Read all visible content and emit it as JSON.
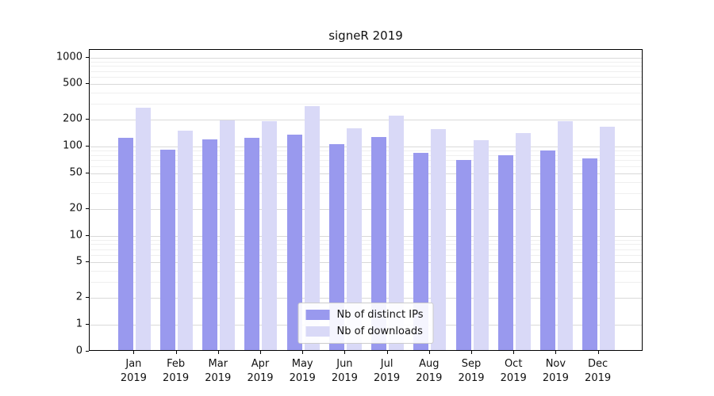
{
  "chart_data": {
    "type": "bar",
    "title": "signeR 2019",
    "categories": [
      "Jan 2019",
      "Feb 2019",
      "Mar 2019",
      "Apr 2019",
      "May 2019",
      "Jun 2019",
      "Jul 2019",
      "Aug 2019",
      "Sep 2019",
      "Oct 2019",
      "Nov 2019",
      "Dec 2019"
    ],
    "series": [
      {
        "name": "Nb of distinct IPs",
        "color": "#9999ee",
        "values": [
          120,
          88,
          115,
          120,
          130,
          102,
          122,
          82,
          68,
          77,
          87,
          70
        ]
      },
      {
        "name": "Nb of downloads",
        "color": "#d9d9f7",
        "values": [
          260,
          145,
          190,
          185,
          275,
          155,
          215,
          150,
          112,
          135,
          185,
          160
        ]
      }
    ],
    "xlabel": "",
    "ylabel": "",
    "yscale": "symlog",
    "ylim": [
      0,
      1200
    ],
    "y_ticks": [
      0,
      1,
      2,
      5,
      10,
      20,
      50,
      100,
      200,
      500,
      1000
    ],
    "grid": true,
    "legend_position": "lower center"
  }
}
